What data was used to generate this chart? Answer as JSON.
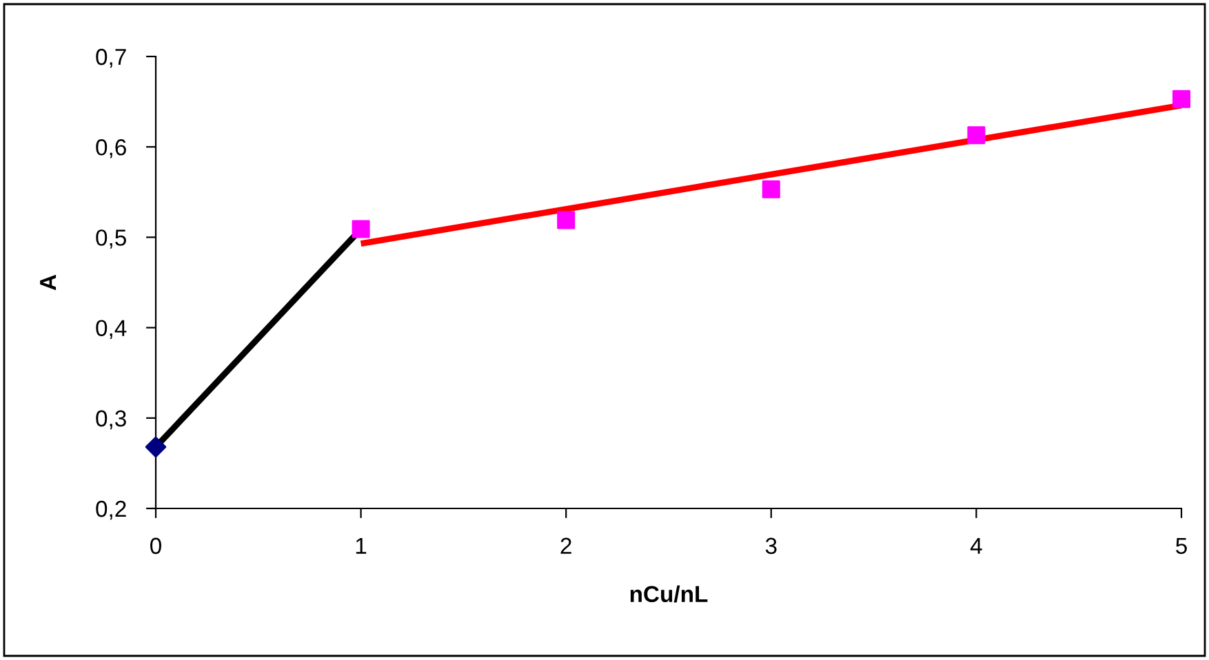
{
  "chart_data": {
    "type": "scatter",
    "xlabel": "nCu/nL",
    "ylabel": "A",
    "xlim": [
      0,
      5
    ],
    "xticks": [
      0,
      1,
      2,
      3,
      4,
      5
    ],
    "ylim": [
      0.2,
      0.7
    ],
    "yticks": [
      {
        "value": 0.2,
        "label": "0,2"
      },
      {
        "value": 0.3,
        "label": "0,3"
      },
      {
        "value": 0.4,
        "label": "0,4"
      },
      {
        "value": 0.5,
        "label": "0,5"
      },
      {
        "value": 0.6,
        "label": "0,6"
      },
      {
        "value": 0.7,
        "label": "0,7"
      }
    ],
    "grid": false,
    "legend": false,
    "series": [
      {
        "type": "line",
        "color": "#000000",
        "x": [
          0,
          1
        ],
        "values": [
          0.268,
          0.509
        ],
        "marker": "none"
      },
      {
        "type": "line",
        "color": "#ff0000",
        "x": [
          1,
          5
        ],
        "values": [
          0.493,
          0.646
        ],
        "marker": "none"
      },
      {
        "color": "#000080",
        "x": [
          0
        ],
        "values": [
          0.268
        ],
        "marker": "diamond"
      },
      {
        "color": "#ff00ff",
        "x": [
          1,
          2,
          3,
          4,
          5
        ],
        "values": [
          0.509,
          0.519,
          0.553,
          0.613,
          0.653
        ],
        "marker": "square"
      }
    ]
  }
}
